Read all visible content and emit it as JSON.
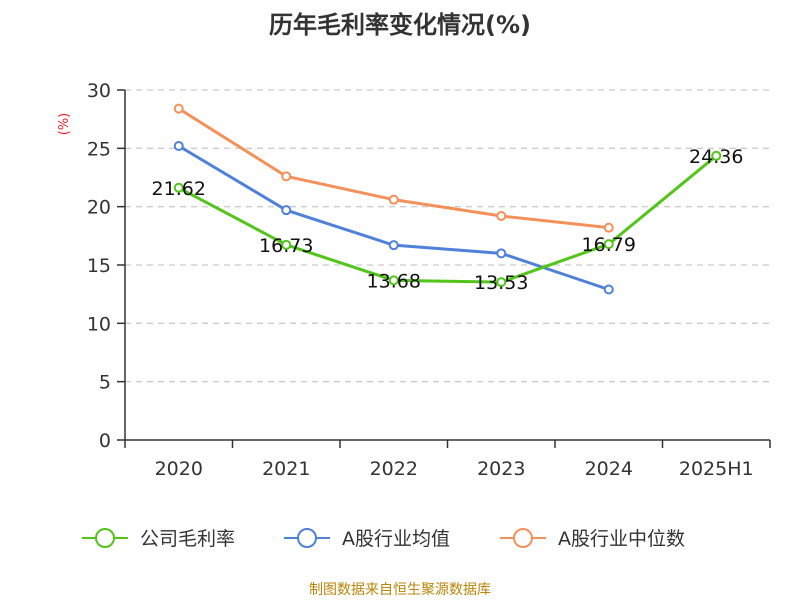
{
  "chart_data": {
    "type": "line",
    "title": "历年毛利率变化情况(%)",
    "ylabel": "(%)",
    "xlabel": "",
    "categories": [
      "2020",
      "2021",
      "2022",
      "2023",
      "2024",
      "2025H1"
    ],
    "ylim": [
      0,
      30
    ],
    "yticks": [
      0,
      5,
      10,
      15,
      20,
      25,
      30
    ],
    "grid": true,
    "legend_position": "bottom",
    "series": [
      {
        "name": "公司毛利率",
        "color": "#52c41a",
        "values": [
          21.62,
          16.73,
          13.68,
          13.53,
          16.79,
          24.36
        ],
        "labels": [
          "21.62",
          "16.73",
          "13.68",
          "13.53",
          "16.79",
          "24.36"
        ]
      },
      {
        "name": "A股行业均值",
        "color": "#4f81d8",
        "values": [
          25.2,
          19.7,
          16.7,
          16.0,
          12.9,
          null
        ],
        "labels": []
      },
      {
        "name": "A股行业中位数",
        "color": "#f4905a",
        "values": [
          28.4,
          22.6,
          20.6,
          19.2,
          18.2,
          null
        ],
        "labels": []
      }
    ]
  },
  "source": "制图数据来自恒生聚源数据库"
}
